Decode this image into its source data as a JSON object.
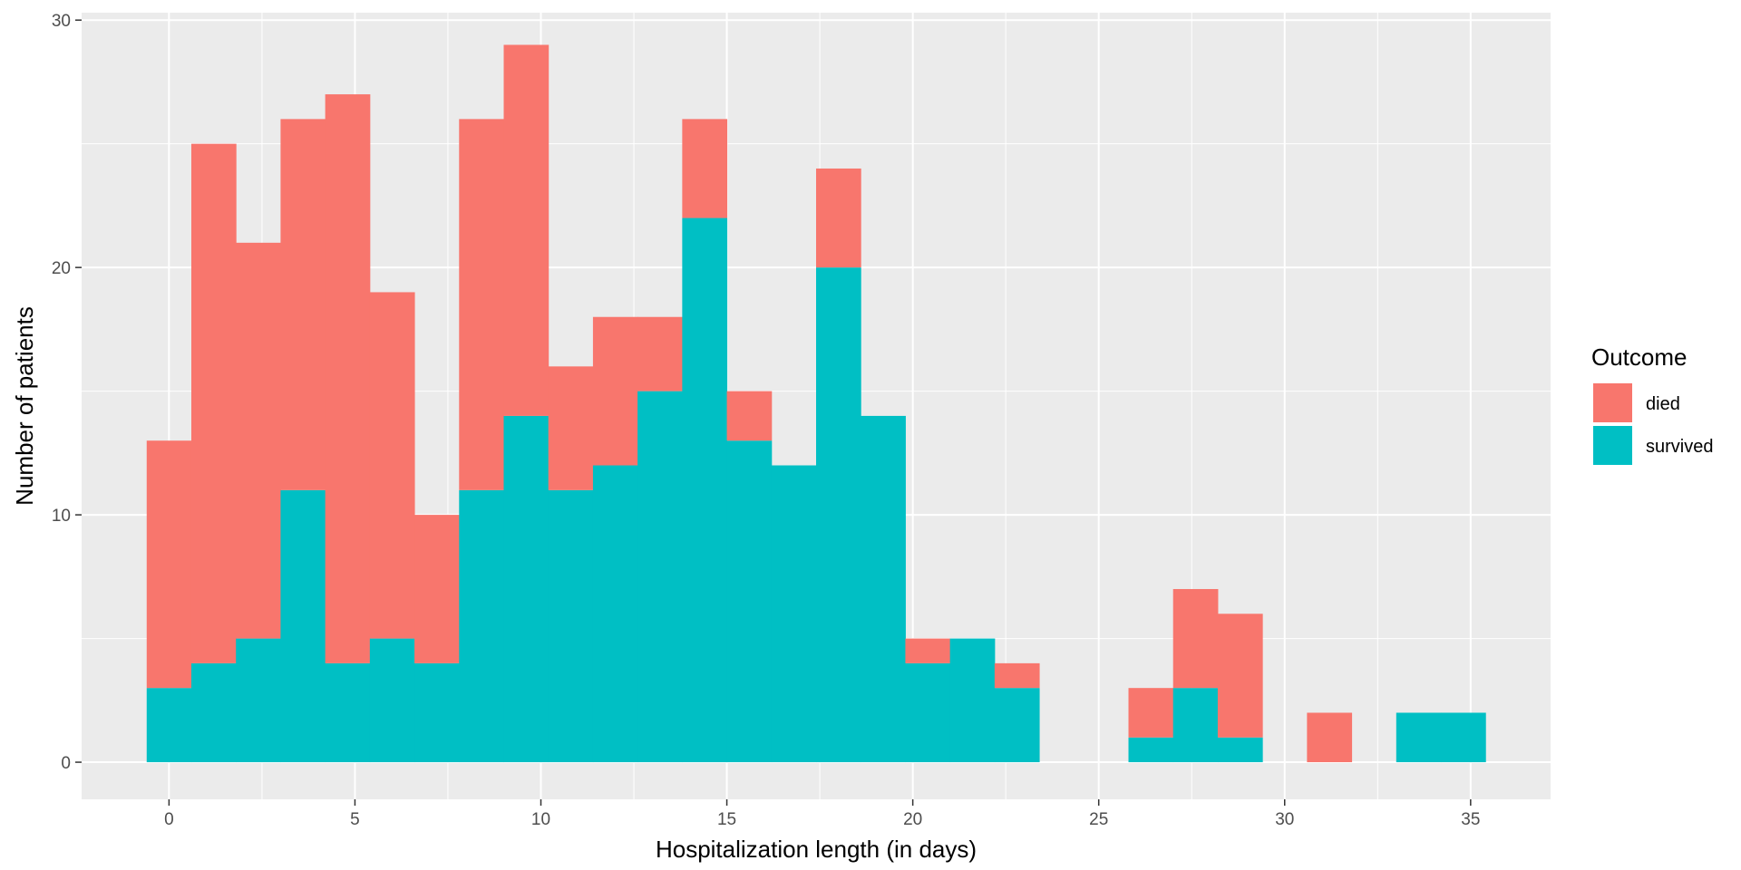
{
  "chart_data": {
    "type": "bar",
    "stacked": true,
    "binwidth": 1.2,
    "xlabel": "Hospitalization length (in days)",
    "ylabel": "Number of patients",
    "xlim": [
      -2.35,
      37.15
    ],
    "ylim": [
      -1.5,
      30.3
    ],
    "x_ticks": [
      0,
      5,
      10,
      15,
      20,
      25,
      30,
      35
    ],
    "y_ticks": [
      0,
      10,
      20,
      30
    ],
    "grid": true,
    "legend_title": "Outcome",
    "legend_position": "right",
    "colors": {
      "died": "#F8766D",
      "survived": "#00BFC4",
      "panel": "#EBEBEB",
      "grid": "#FFFFFF"
    },
    "x": [
      0,
      1.2,
      2.4,
      3.6,
      4.8,
      6.0,
      7.2,
      8.4,
      9.6,
      10.8,
      12.0,
      13.2,
      14.4,
      15.6,
      16.8,
      18.0,
      19.2,
      20.4,
      21.6,
      22.8,
      24.0,
      25.2,
      26.4,
      27.6,
      28.8,
      30.0,
      31.2,
      32.4,
      33.6,
      34.8
    ],
    "series": [
      {
        "name": "died",
        "values": [
          10,
          21,
          16,
          15,
          23,
          14,
          6,
          15,
          15,
          5,
          6,
          3,
          4,
          2,
          0,
          4,
          0,
          1,
          0,
          1,
          0,
          0,
          2,
          4,
          5,
          0,
          2,
          0,
          0,
          0
        ]
      },
      {
        "name": "survived",
        "values": [
          3,
          4,
          5,
          11,
          4,
          5,
          4,
          11,
          14,
          11,
          12,
          15,
          22,
          13,
          12,
          20,
          14,
          4,
          5,
          3,
          0,
          0,
          1,
          3,
          1,
          0,
          0,
          0,
          2,
          2
        ]
      }
    ]
  }
}
